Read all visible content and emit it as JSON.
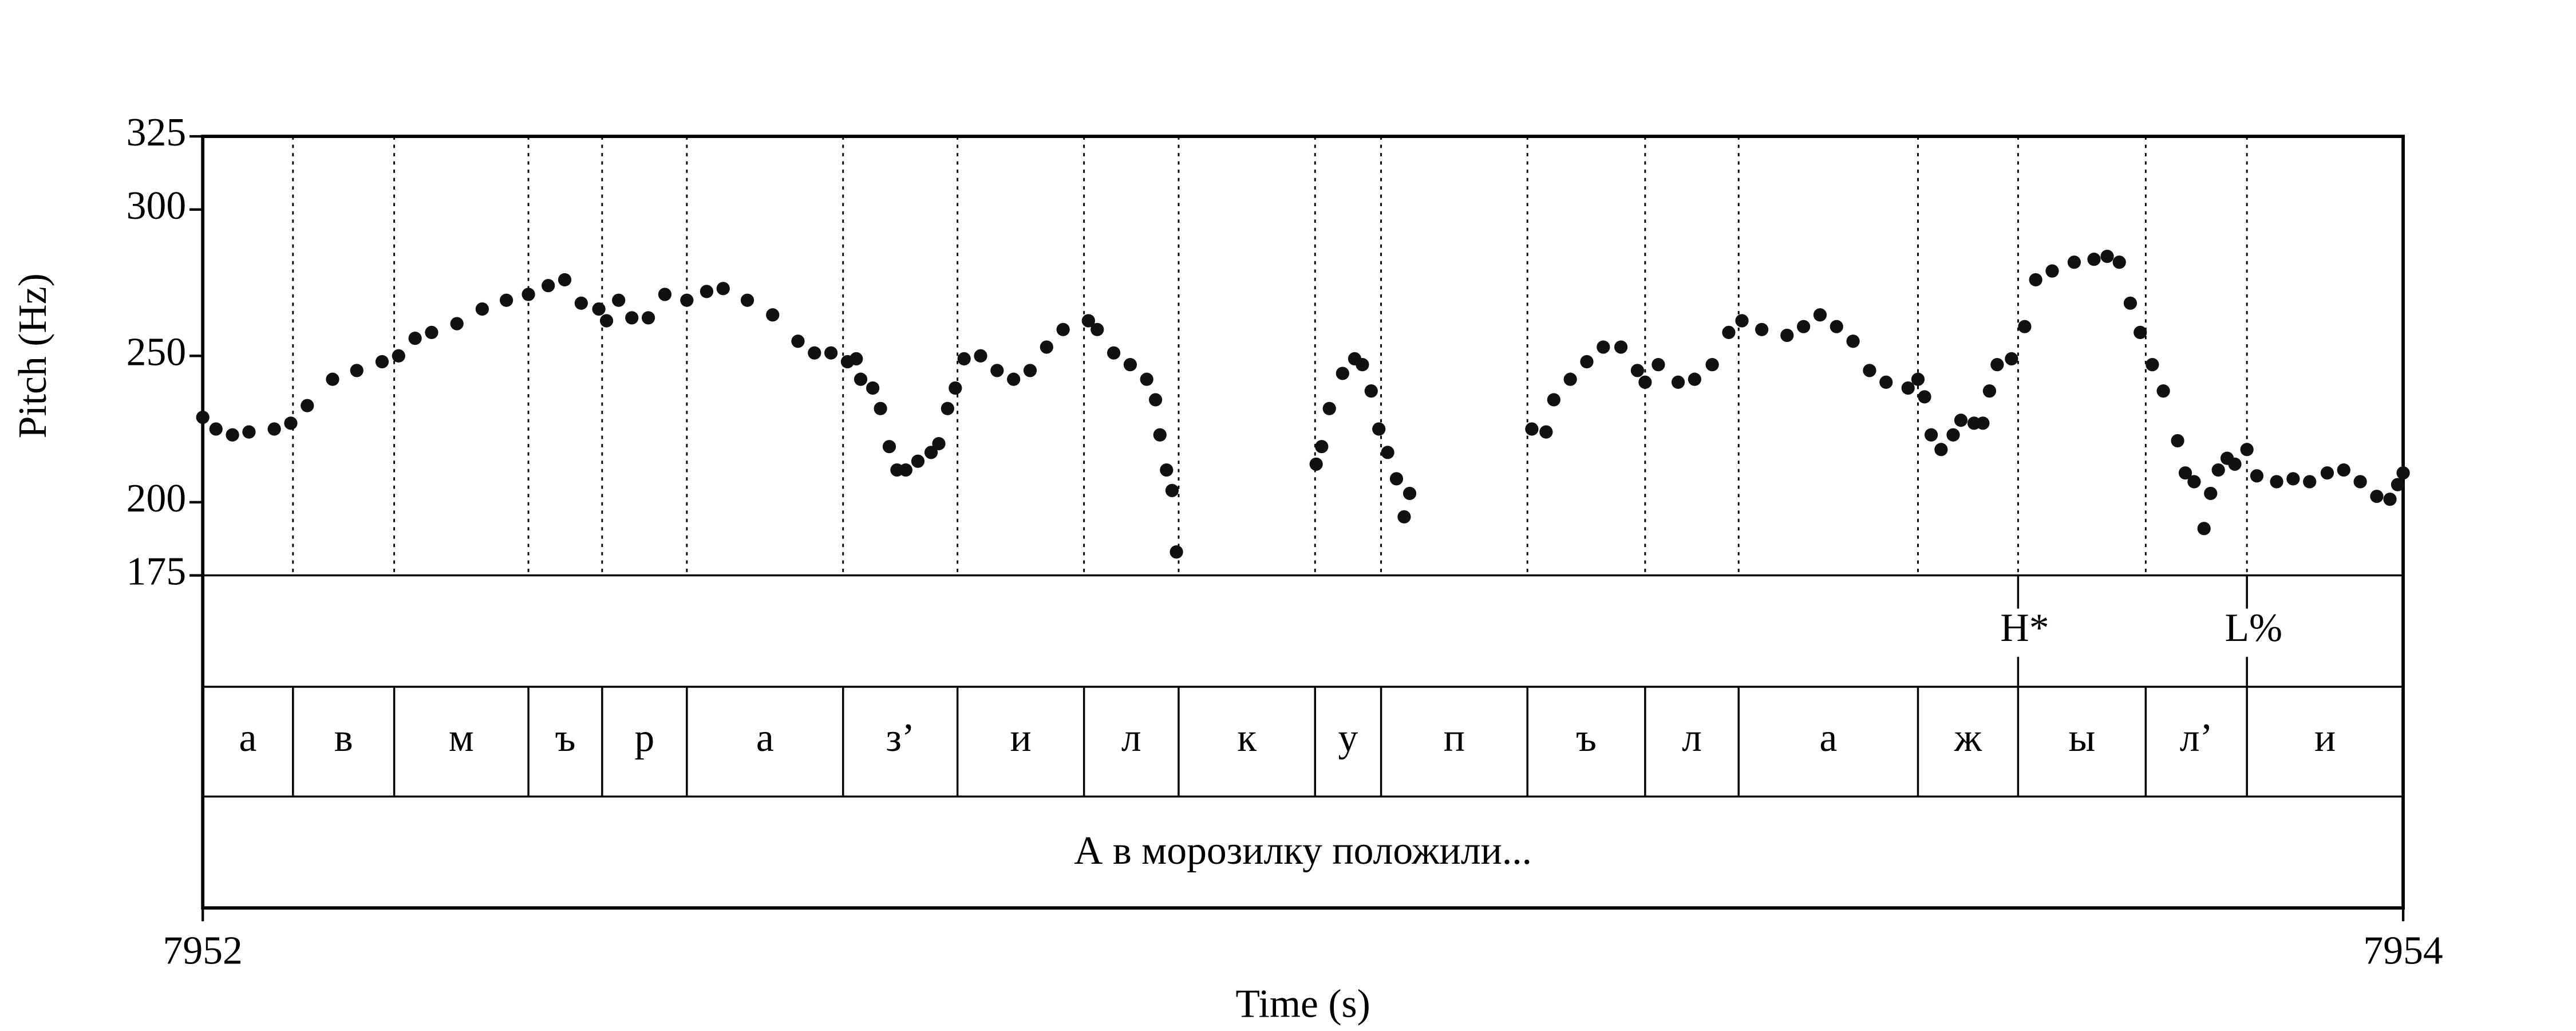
{
  "chart_data": {
    "type": "scatter",
    "x_label": "Time (s)",
    "y_label": "Pitch (Hz)",
    "xlim": [
      7952,
      7954
    ],
    "xticks": [
      7952,
      7954
    ],
    "ylim": [
      175,
      325
    ],
    "yticks": [
      175,
      200,
      250,
      300,
      325
    ],
    "color": "#111111",
    "x": [
      7952,
      7952.012,
      7952.027,
      7952.042,
      7952.065,
      7952.08,
      7952.095,
      7952.118,
      7952.14,
      7952.163,
      7952.178,
      7952.193,
      7952.208,
      7952.231,
      7952.254,
      7952.276,
      7952.296,
      7952.314,
      7952.329,
      7952.344,
      7952.36,
      7952.367,
      7952.378,
      7952.39,
      7952.405,
      7952.42,
      7952.44,
      7952.458,
      7952.473,
      7952.495,
      7952.518,
      7952.541,
      7952.556,
      7952.571,
      7952.586,
      7952.594,
      7952.598,
      7952.609,
      7952.616,
      7952.624,
      7952.631,
      7952.639,
      7952.65,
      7952.662,
      7952.669,
      7952.677,
      7952.684,
      7952.692,
      7952.707,
      7952.722,
      7952.737,
      7952.752,
      7952.767,
      7952.782,
      7952.805,
      7952.813,
      7952.828,
      7952.843,
      7952.858,
      7952.866,
      7952.87,
      7952.876,
      7952.881,
      7952.885,
      7953.012,
      7953.017,
      7953.024,
      7953.036,
      7953.047,
      7953.054,
      7953.062,
      7953.069,
      7953.077,
      7953.085,
      7953.092,
      7953.097,
      7953.208,
      7953.221,
      7953.228,
      7953.243,
      7953.258,
      7953.273,
      7953.289,
      7953.304,
      7953.311,
      7953.323,
      7953.341,
      7953.356,
      7953.372,
      7953.387,
      7953.399,
      7953.417,
      7953.44,
      7953.455,
      7953.47,
      7953.485,
      7953.5,
      7953.515,
      7953.53,
      7953.55,
      7953.559,
      7953.565,
      7953.571,
      7953.58,
      7953.591,
      7953.598,
      7953.61,
      7953.618,
      7953.624,
      7953.631,
      7953.644,
      7953.656,
      7953.666,
      7953.681,
      7953.701,
      7953.719,
      7953.731,
      7953.742,
      7953.752,
      7953.761,
      7953.772,
      7953.782,
      7953.795,
      7953.802,
      7953.81,
      7953.819,
      7953.825,
      7953.832,
      7953.84,
      7953.847,
      7953.858,
      7953.867,
      7953.885,
      7953.9,
      7953.915,
      7953.931,
      7953.946,
      7953.961,
      7953.976,
      7953.988,
      7953.995,
      7954
    ],
    "values": [
      229,
      225,
      223,
      224,
      225,
      227,
      233,
      242,
      245,
      248,
      250,
      256,
      258,
      261,
      266,
      269,
      271,
      274,
      276,
      268,
      266,
      262,
      269,
      263,
      263,
      271,
      269,
      272,
      273,
      269,
      264,
      255,
      251,
      251,
      248,
      249,
      242,
      239,
      232,
      219,
      211,
      211,
      214,
      217,
      220,
      232,
      239,
      249,
      250,
      245,
      242,
      245,
      253,
      259,
      262,
      259,
      251,
      247,
      242,
      235,
      223,
      211,
      204,
      183,
      213,
      219,
      232,
      244,
      249,
      247,
      238,
      225,
      217,
      208,
      195,
      203,
      225,
      224,
      235,
      242,
      248,
      253,
      253,
      245,
      241,
      247,
      241,
      242,
      247,
      258,
      262,
      259,
      257,
      260,
      264,
      260,
      255,
      245,
      241,
      239,
      242,
      236,
      223,
      218,
      223,
      228,
      227,
      227,
      238,
      247,
      249,
      260,
      276,
      279,
      282,
      283,
      284,
      282,
      268,
      258,
      247,
      238,
      221,
      210,
      207,
      191,
      203,
      211,
      215,
      213,
      218,
      209,
      207,
      208,
      207,
      210,
      211,
      207,
      202,
      201,
      206,
      210
    ],
    "segments": {
      "boundaries": [
        7952.082,
        7952.174,
        7952.296,
        7952.363,
        7952.44,
        7952.582,
        7952.686,
        7952.801,
        7952.887,
        7953.011,
        7953.071,
        7953.204,
        7953.311,
        7953.396,
        7953.559,
        7953.65,
        7953.766,
        7953.858
      ],
      "labels": [
        "а",
        "в",
        "м",
        "ъ",
        "р",
        "а",
        "з’",
        "и",
        "л",
        "к",
        "у",
        "п",
        "ъ",
        "л",
        "а",
        "ж",
        "ы",
        "л’",
        "и"
      ]
    },
    "tones": {
      "times": [
        7953.65,
        7953.858
      ],
      "labels": [
        "H*",
        "L%"
      ]
    },
    "sentence": "А в морозилку положили..."
  }
}
